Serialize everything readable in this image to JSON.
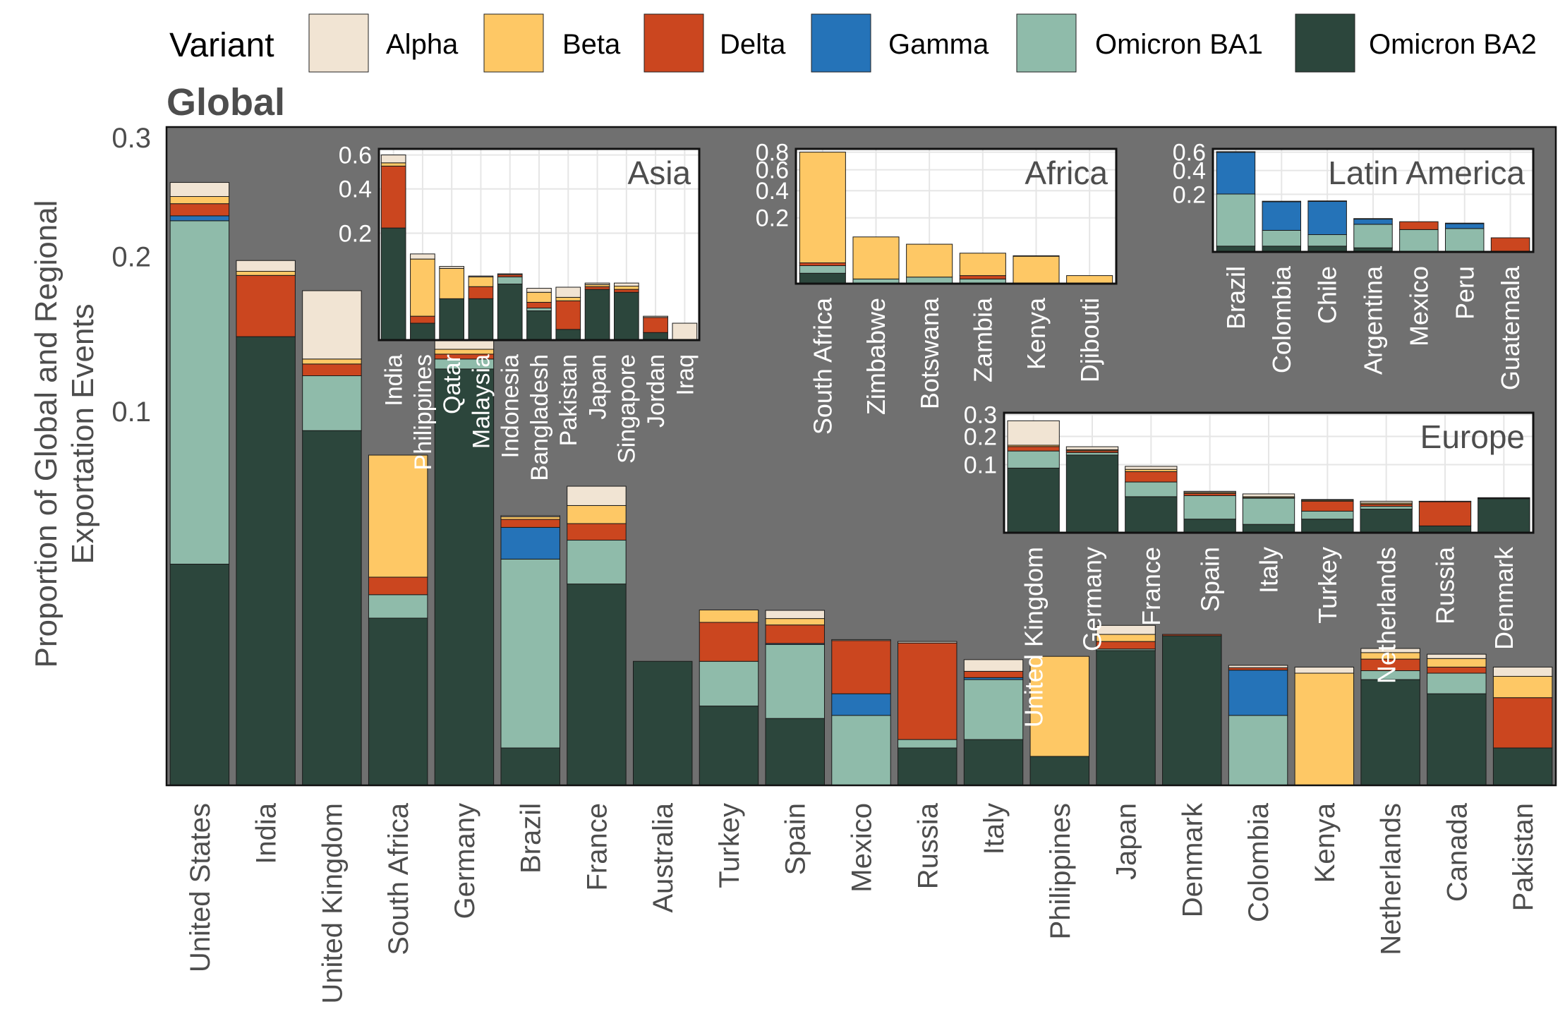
{
  "legend": {
    "title": "Variant",
    "items": [
      {
        "name": "Alpha",
        "color": "#f1e4d3"
      },
      {
        "name": "Beta",
        "color": "#fec865"
      },
      {
        "name": "Delta",
        "color": "#cb461f"
      },
      {
        "name": "Gamma",
        "color": "#2573b8"
      },
      {
        "name": "Omicron BA1",
        "color": "#8fbbaa"
      },
      {
        "name": "Omicron BA2",
        "color": "#2c463c"
      }
    ]
  },
  "colors": {
    "panel_bg": "#707070",
    "inset_bg": "#ffffff",
    "grid": "#e6e6e6",
    "text": "#4d4d4d"
  },
  "chart_data": [
    {
      "type": "bar",
      "stacked": true,
      "scale": "sqrt",
      "title": "Global",
      "ylabel": "Proportion of Global and Regional Exportation Events",
      "yticks": [
        0.1,
        0.2,
        0.3
      ],
      "ylim": [
        0,
        0.31
      ],
      "categories": [
        "United States",
        "India",
        "United Kingdom",
        "South Africa",
        "Germany",
        "Brazil",
        "France",
        "Australia",
        "Turkey",
        "Spain",
        "Mexico",
        "Russia",
        "Italy",
        "Philippines",
        "Japan",
        "Denmark",
        "Colombia",
        "Kenya",
        "Netherlands",
        "Canada",
        "Pakistan"
      ],
      "series": [
        {
          "name": "Omicron BA2",
          "values": [
            0.035,
            0.144,
            0.09,
            0.02,
            0.124,
            0.001,
            0.029,
            0.011,
            0.0045,
            0.0032,
            0,
            0.001,
            0.0015,
            0.0006,
            0.013,
            0.016,
            0,
            0,
            0.008,
            0.006,
            0.001
          ]
        },
        {
          "name": "Omicron BA1",
          "values": [
            0.193,
            0,
            0.03,
            0.006,
            0.006,
            0.0356,
            0.014,
            0,
            0.0065,
            0.011,
            0.0035,
            0.0005,
            0.0065,
            0,
            0.0003,
            0,
            0.0035,
            0,
            0.0014,
            0.003,
            0
          ]
        },
        {
          "name": "Gamma",
          "values": [
            0.004,
            0,
            0,
            0,
            0,
            0.011,
            0,
            0,
            0,
            0.0002,
            0.0025,
            0,
            0.0003,
            0,
            0,
            0,
            0.006,
            0,
            0,
            0,
            0
          ]
        },
        {
          "name": "Delta",
          "values": [
            0.01,
            0.042,
            0.007,
            0.005,
            0.003,
            0.003,
            0.006,
            0,
            0.008,
            0.004,
            0.009,
            0.013,
            0.001,
            0,
            0.0015,
            0.0003,
            0.0004,
            0,
            0.002,
            0.001,
            0.0045
          ]
        },
        {
          "name": "Beta",
          "values": [
            0.006,
            0.003,
            0.003,
            0.047,
            0.003,
            0.001,
            0.007,
            0,
            0.003,
            0.0015,
            0,
            0,
            0,
            0.0113,
            0.0015,
            0,
            0,
            0.009,
            0.0012,
            0.0015,
            0.003
          ]
        },
        {
          "name": "Alpha",
          "values": [
            0.012,
            0.008,
            0.045,
            0,
            0.006,
            0.0004,
            0.008,
            0,
            0,
            0.002,
            0.0002,
            0.0003,
            0.002,
            0,
            0.002,
            0,
            0.0004,
            0.001,
            0.0008,
            0.0008,
            0.0015
          ]
        }
      ]
    },
    {
      "type": "bar",
      "stacked": true,
      "scale": "sqrt",
      "title": "Asia",
      "yticks": [
        0.2,
        0.4,
        0.6
      ],
      "ylim": [
        0,
        0.64
      ],
      "categories": [
        "India",
        "Philippines",
        "Qatar",
        "Malaysia",
        "Indonesia",
        "Bangladesh",
        "Pakistan",
        "Japan",
        "Singapore",
        "Jordan",
        "Iraq"
      ],
      "series": [
        {
          "name": "Omicron BA2",
          "values": [
            0.22,
            0.005,
            0.03,
            0.03,
            0.055,
            0.015,
            0.002,
            0.045,
            0.04,
            0.001,
            0
          ]
        },
        {
          "name": "Omicron BA1",
          "values": [
            0,
            0,
            0,
            0,
            0.015,
            0.003,
            0,
            0,
            0,
            0,
            0
          ]
        },
        {
          "name": "Gamma",
          "values": [
            0,
            0,
            0,
            0,
            0,
            0,
            0,
            0,
            0,
            0,
            0
          ]
        },
        {
          "name": "Delta",
          "values": [
            0.31,
            0.005,
            0,
            0.02,
            0.005,
            0.007,
            0.025,
            0.005,
            0.005,
            0.008,
            0
          ]
        },
        {
          "name": "Beta",
          "values": [
            0.02,
            0.105,
            0.06,
            0.02,
            0,
            0.015,
            0.005,
            0.004,
            0.006,
            0,
            0
          ]
        },
        {
          "name": "Alpha",
          "values": [
            0.05,
            0.015,
            0.005,
            0.002,
            0.002,
            0.007,
            0.017,
            0.003,
            0.006,
            0.001,
            0.005
          ]
        }
      ]
    },
    {
      "type": "bar",
      "stacked": true,
      "scale": "sqrt",
      "title": "Africa",
      "yticks": [
        0.2,
        0.4,
        0.6,
        0.8
      ],
      "ylim": [
        0,
        0.84
      ],
      "categories": [
        "South Africa",
        "Zimbabwe",
        "Botswana",
        "Zambia",
        "Kenya",
        "Djibouti"
      ],
      "series": [
        {
          "name": "Omicron BA2",
          "values": [
            0.005,
            0,
            0,
            0,
            0,
            0
          ]
        },
        {
          "name": "Omicron BA1",
          "values": [
            0.01,
            0.001,
            0.002,
            0.001,
            0,
            0
          ]
        },
        {
          "name": "Gamma",
          "values": [
            0,
            0,
            0,
            0,
            0,
            0
          ]
        },
        {
          "name": "Delta",
          "values": [
            0.005,
            0,
            0,
            0.002,
            0,
            0
          ]
        },
        {
          "name": "Beta",
          "values": [
            0.78,
            0.1,
            0.07,
            0.04,
            0.035,
            0.003
          ]
        },
        {
          "name": "Alpha",
          "values": [
            0,
            0,
            0,
            0,
            0.001,
            0
          ]
        }
      ]
    },
    {
      "type": "bar",
      "stacked": true,
      "scale": "sqrt",
      "title": "Latin America",
      "yticks": [
        0.2,
        0.4,
        0.6
      ],
      "ylim": [
        0,
        0.64
      ],
      "categories": [
        "Brazil",
        "Colombia",
        "Chile",
        "Argentina",
        "Mexico",
        "Peru",
        "Guatemala"
      ],
      "series": [
        {
          "name": "Omicron BA2",
          "values": [
            0.002,
            0.002,
            0.002,
            0.001,
            0,
            0,
            0
          ]
        },
        {
          "name": "Omicron BA1",
          "values": [
            0.2,
            0.026,
            0.016,
            0.045,
            0.03,
            0.033,
            0
          ]
        },
        {
          "name": "Gamma",
          "values": [
            0.4,
            0.125,
            0.137,
            0.02,
            0,
            0.015,
            0
          ]
        },
        {
          "name": "Delta",
          "values": [
            0.003,
            0.002,
            0.002,
            0.001,
            0.025,
            0.002,
            0.012
          ]
        },
        {
          "name": "Beta",
          "values": [
            0,
            0,
            0,
            0,
            0,
            0,
            0
          ]
        },
        {
          "name": "Alpha",
          "values": [
            0.001,
            0,
            0,
            0,
            0,
            0,
            0
          ]
        }
      ]
    },
    {
      "type": "bar",
      "stacked": true,
      "scale": "sqrt",
      "title": "Europe",
      "yticks": [
        0.1,
        0.2,
        0.3
      ],
      "ylim": [
        0,
        0.31
      ],
      "categories": [
        "United Kingdom",
        "Germany",
        "France",
        "Spain",
        "Italy",
        "Turkey",
        "Netherlands",
        "Russia",
        "Denmark"
      ],
      "series": [
        {
          "name": "Omicron BA2",
          "values": [
            0.09,
            0.13,
            0.028,
            0.004,
            0.0015,
            0.004,
            0.012,
            0.001,
            0.025
          ]
        },
        {
          "name": "Omicron BA1",
          "values": [
            0.054,
            0.0085,
            0.0275,
            0.0256,
            0.0245,
            0.006,
            0.003,
            0,
            0.001
          ]
        },
        {
          "name": "Gamma",
          "values": [
            0,
            0,
            0,
            0,
            0,
            0,
            0,
            0,
            0
          ]
        },
        {
          "name": "Delta",
          "values": [
            0.016,
            0.0065,
            0.025,
            0.0037,
            0.0005,
            0.0115,
            0.0025,
            0.0199,
            0
          ]
        },
        {
          "name": "Beta",
          "values": [
            0.005,
            0.0035,
            0.006,
            0.0019,
            0.0015,
            0.0013,
            0.0015,
            0,
            0
          ]
        },
        {
          "name": "Alpha",
          "values": [
            0.105,
            0.0109,
            0.0085,
            0.0018,
            0.0045,
            0.001,
            0.0024,
            0.0005,
            0.0005
          ]
        }
      ]
    }
  ]
}
